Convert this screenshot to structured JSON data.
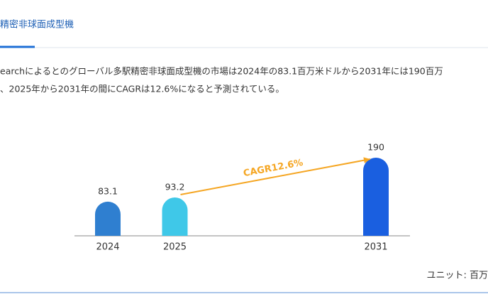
{
  "header": {
    "title": "精密非球面成型機"
  },
  "paragraph": {
    "lines": [
      "earchによるとのグローバル多駅精密非球面成型機の市場は2024年の83.1百万米ドルから2031年には190百万",
      "、2025年から2031年の間にCAGRは12.6%になると予測されている。"
    ]
  },
  "chart_data": {
    "type": "bar",
    "categories": [
      "2024",
      "2025",
      null,
      null,
      "2031"
    ],
    "values": [
      83.1,
      93.2,
      null,
      null,
      190
    ],
    "colors": [
      "#2f7fd0",
      "#3fc8e8",
      null,
      null,
      "#1a5fe0"
    ],
    "annotation": {
      "text": "CAGR12.6%",
      "color": "#f5a623"
    }
  },
  "unit": "ユニット: 百万"
}
